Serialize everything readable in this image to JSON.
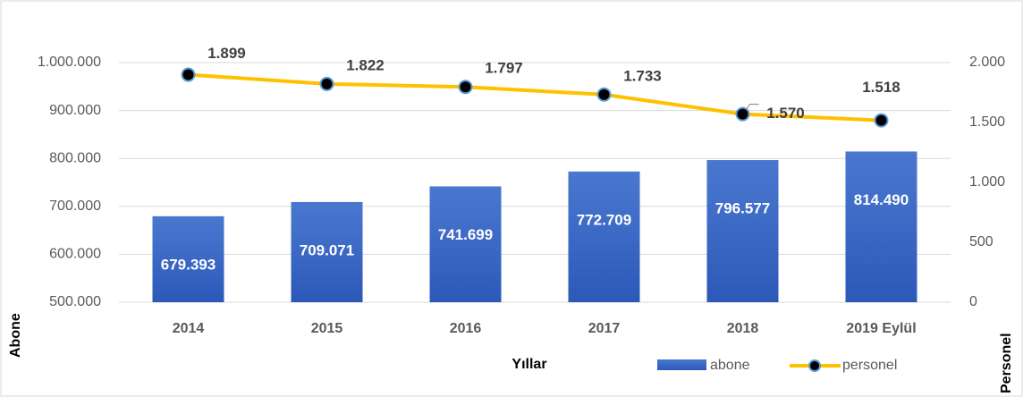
{
  "chart_data": {
    "type": "bar",
    "x_label": "Yıllar",
    "y_label": "Abone",
    "y2_label": "Personel",
    "categories": [
      "2014",
      "2015",
      "2016",
      "2017",
      "2018",
      "2019 Eylül"
    ],
    "series": [
      {
        "name": "abone",
        "type": "bar",
        "color": "#4472c4",
        "values": [
          679393,
          709071,
          741699,
          772709,
          796577,
          814490
        ],
        "value_labels": [
          "679.393",
          "709.071",
          "741.699",
          "772.709",
          "796.577",
          "814.490"
        ]
      },
      {
        "name": "personel",
        "type": "line",
        "axis": "y2",
        "color": "#ffc000",
        "values": [
          1899,
          1822,
          1797,
          1733,
          1570,
          1518
        ],
        "value_labels": [
          "1.899",
          "1.822",
          "1.797",
          "1.733",
          "1.570",
          "1.518"
        ]
      }
    ],
    "ylim": [
      500000,
      1000000
    ],
    "yticks": [
      {
        "value": 500000,
        "label": "500.000"
      },
      {
        "value": 600000,
        "label": "600.000"
      },
      {
        "value": 700000,
        "label": "700.000"
      },
      {
        "value": 800000,
        "label": "800.000"
      },
      {
        "value": 900000,
        "label": "900.000"
      },
      {
        "value": 1000000,
        "label": "1.000.000"
      }
    ],
    "y2lim": [
      0,
      2000
    ],
    "y2ticks": [
      0,
      500,
      {
        "value": 1000,
        "label": "1.000"
      },
      {
        "value": 1500,
        "label": "1.500"
      },
      {
        "value": 2000,
        "label": "2.000"
      }
    ],
    "grid": true
  }
}
